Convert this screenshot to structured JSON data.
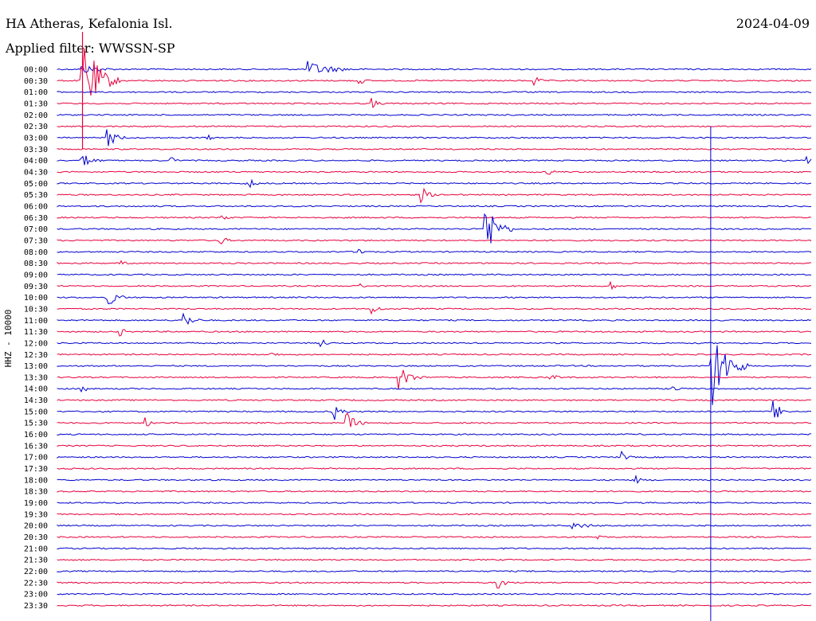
{
  "header": {
    "station": "HA Atheras, Kefalonia Isl.",
    "date": "2024-04-09",
    "filter": "Applied filter: WWSSN-SP",
    "channel": "HHZ - 10000"
  },
  "colors": {
    "trace_a": "#0000d0",
    "trace_b": "#e8003c"
  },
  "chart_data": {
    "type": "line",
    "title": "HA Atheras, Kefalonia Isl.",
    "ylabel": "HHZ - 10000",
    "rows": [
      "00:00",
      "00:30",
      "01:00",
      "01:30",
      "02:00",
      "02:30",
      "03:00",
      "03:30",
      "04:00",
      "04:30",
      "05:00",
      "05:30",
      "06:00",
      "06:30",
      "07:00",
      "07:30",
      "08:00",
      "08:30",
      "09:00",
      "09:30",
      "10:00",
      "10:30",
      "11:00",
      "11:30",
      "12:00",
      "12:30",
      "13:00",
      "13:30",
      "14:00",
      "14:30",
      "15:00",
      "15:30",
      "16:00",
      "16:30",
      "17:00",
      "17:30",
      "18:00",
      "18:30",
      "19:00",
      "19:30",
      "20:00",
      "20:30",
      "21:00",
      "21:30",
      "22:00",
      "22:30",
      "23:00",
      "23:30"
    ],
    "minutes_per_row": 30,
    "series_colors": [
      "#0000d0",
      "#e8003c"
    ],
    "events": [
      {
        "row": 0,
        "minute": 1.0,
        "amp": 6,
        "dur": 2.0
      },
      {
        "row": 0,
        "minute": 10.0,
        "amp": 10,
        "dur": 2.5
      },
      {
        "row": 1,
        "minute": 1.0,
        "amp": 60,
        "dur": 1.5
      },
      {
        "row": 1,
        "minute": 12.0,
        "amp": 6,
        "dur": 0.6
      },
      {
        "row": 1,
        "minute": 19.0,
        "amp": 6,
        "dur": 0.6
      },
      {
        "row": 3,
        "minute": 12.5,
        "amp": 7,
        "dur": 0.7
      },
      {
        "row": 6,
        "minute": 2.0,
        "amp": 12,
        "dur": 1.0
      },
      {
        "row": 6,
        "minute": 6.0,
        "amp": 4,
        "dur": 0.5
      },
      {
        "row": 8,
        "minute": 1.0,
        "amp": 10,
        "dur": 1.0
      },
      {
        "row": 8,
        "minute": 4.5,
        "amp": 6,
        "dur": 0.5
      },
      {
        "row": 8,
        "minute": 29.8,
        "amp": 7,
        "dur": 0.4
      },
      {
        "row": 9,
        "minute": 19.5,
        "amp": 4,
        "dur": 1.0
      },
      {
        "row": 10,
        "minute": 7.5,
        "amp": 10,
        "dur": 0.8
      },
      {
        "row": 11,
        "minute": 14.5,
        "amp": 10,
        "dur": 0.8
      },
      {
        "row": 13,
        "minute": 6.5,
        "amp": 7,
        "dur": 0.6
      },
      {
        "row": 14,
        "minute": 17.0,
        "amp": 40,
        "dur": 1.2
      },
      {
        "row": 15,
        "minute": 6.5,
        "amp": 7,
        "dur": 0.6
      },
      {
        "row": 16,
        "minute": 12.0,
        "amp": 8,
        "dur": 0.6
      },
      {
        "row": 17,
        "minute": 2.5,
        "amp": 5,
        "dur": 0.5
      },
      {
        "row": 19,
        "minute": 12.0,
        "amp": 5,
        "dur": 0.5
      },
      {
        "row": 19,
        "minute": 22.0,
        "amp": 6,
        "dur": 0.6
      },
      {
        "row": 20,
        "minute": 2.0,
        "amp": 12,
        "dur": 1.0
      },
      {
        "row": 21,
        "minute": 12.5,
        "amp": 10,
        "dur": 0.6
      },
      {
        "row": 22,
        "minute": 5.0,
        "amp": 12,
        "dur": 0.9
      },
      {
        "row": 23,
        "minute": 2.5,
        "amp": 6,
        "dur": 0.6
      },
      {
        "row": 24,
        "minute": 10.5,
        "amp": 7,
        "dur": 0.5
      },
      {
        "row": 25,
        "minute": 8.5,
        "amp": 4,
        "dur": 0.8
      },
      {
        "row": 26,
        "minute": 26.0,
        "amp": 60,
        "dur": 1.5
      },
      {
        "row": 27,
        "minute": 13.5,
        "amp": 18,
        "dur": 1.2
      },
      {
        "row": 27,
        "minute": 19.5,
        "amp": 4,
        "dur": 1.5
      },
      {
        "row": 28,
        "minute": 1.0,
        "amp": 4,
        "dur": 0.8
      },
      {
        "row": 28,
        "minute": 24.5,
        "amp": 6,
        "dur": 0.6
      },
      {
        "row": 30,
        "minute": 11.0,
        "amp": 12,
        "dur": 0.8
      },
      {
        "row": 30,
        "minute": 28.5,
        "amp": 14,
        "dur": 0.8
      },
      {
        "row": 31,
        "minute": 11.5,
        "amp": 14,
        "dur": 1.0
      },
      {
        "row": 31,
        "minute": 3.5,
        "amp": 7,
        "dur": 0.6
      },
      {
        "row": 34,
        "minute": 22.5,
        "amp": 6,
        "dur": 0.6
      },
      {
        "row": 36,
        "minute": 23.0,
        "amp": 6,
        "dur": 0.6
      },
      {
        "row": 40,
        "minute": 20.5,
        "amp": 5,
        "dur": 2.0
      },
      {
        "row": 41,
        "minute": 21.5,
        "amp": 6,
        "dur": 0.6
      },
      {
        "row": 45,
        "minute": 17.5,
        "amp": 10,
        "dur": 0.8
      }
    ]
  }
}
